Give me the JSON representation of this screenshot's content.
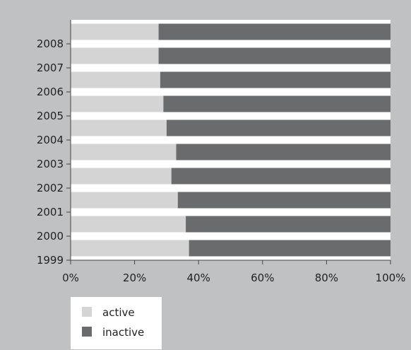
{
  "chart_data": {
    "type": "bar",
    "orientation": "horizontal",
    "stacked": "percent",
    "categories": [
      "1999",
      "2000",
      "2001",
      "2002",
      "2003",
      "2004",
      "2005",
      "2006",
      "2007",
      "2008"
    ],
    "series": [
      {
        "name": "active",
        "color": "#d4d4d4",
        "values": [
          37,
          36,
          33.5,
          31.5,
          33,
          30,
          29,
          28,
          27.5,
          27.5
        ]
      },
      {
        "name": "inactive",
        "color": "#6a6b6d",
        "values": [
          63,
          64,
          66.5,
          68.5,
          67,
          70,
          71,
          72,
          72.5,
          72.5
        ]
      }
    ],
    "x_ticks": [
      "0%",
      "20%",
      "40%",
      "60%",
      "80%",
      "100%"
    ],
    "xlim": [
      0,
      100
    ],
    "grid": false,
    "legend_position": "bottom-left",
    "plot_background": "#ffffff",
    "page_background": "#c0c1c2",
    "title": "",
    "xlabel": "",
    "ylabel": ""
  }
}
